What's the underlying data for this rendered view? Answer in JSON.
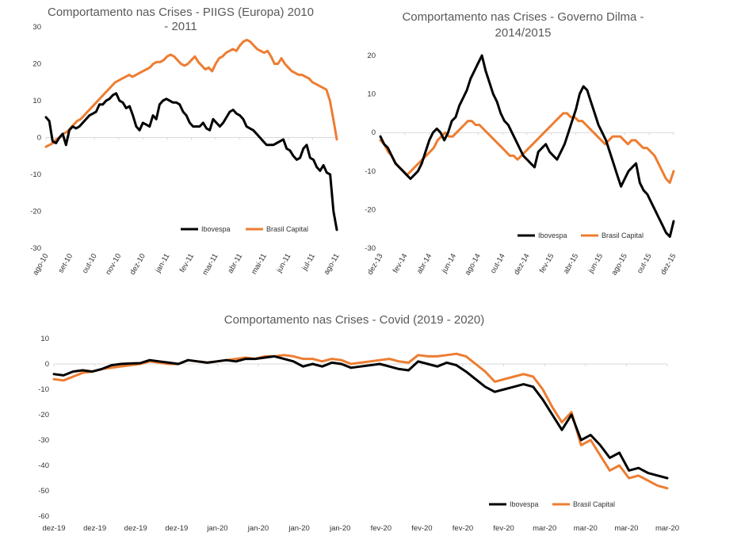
{
  "chart_data": [
    {
      "type": "line",
      "title_lines": [
        "Comportamento nas Crises - PIIGS (Europa) 2010",
        "- 2011"
      ],
      "ylim": [
        -30,
        30
      ],
      "yticks": [
        30,
        20,
        10,
        0,
        -10,
        -20,
        -30
      ],
      "xticks": [
        "ago-10",
        "set-10",
        "out-10",
        "nov-10",
        "dez-10",
        "jan-11",
        "fev-11",
        "mar-11",
        "abr-11",
        "mai-11",
        "jun-11",
        "jul-11",
        "ago-11"
      ],
      "legend_position": "bottom-right",
      "series": [
        {
          "name": "Ibovespa",
          "color": "#000000",
          "values": [
            5.5,
            4.5,
            -1,
            -1.5,
            0,
            1,
            -2,
            2,
            3,
            2.5,
            3,
            4,
            5,
            6,
            6.5,
            7,
            9,
            9,
            10,
            10.5,
            11.5,
            12,
            10,
            9.5,
            8,
            8.5,
            6,
            3,
            2,
            4,
            3.5,
            3,
            6,
            5,
            9,
            10,
            10.5,
            10,
            9.5,
            9.5,
            9,
            7,
            6,
            4,
            3,
            3,
            3,
            4,
            2.5,
            2,
            5,
            4,
            3,
            4,
            5.5,
            7,
            7.5,
            6.5,
            6,
            5,
            3,
            2.5,
            2,
            1,
            0,
            -1,
            -2,
            -2,
            -2,
            -1.5,
            -1,
            -0.5,
            -3,
            -3.5,
            -5,
            -6,
            -5.5,
            -3,
            -2,
            -5.5,
            -6,
            -8,
            -9,
            -7.5,
            -9.5,
            -10,
            -20,
            -25
          ]
        },
        {
          "name": "Brasil Capital",
          "color": "#ed7d31",
          "values": [
            -2.5,
            -2,
            -1.5,
            -0.5,
            0,
            1,
            1.5,
            2.5,
            3.5,
            4.5,
            5,
            6,
            7,
            8,
            9,
            10,
            11,
            12,
            13,
            14,
            15,
            15.5,
            16,
            16.5,
            17,
            16.5,
            17,
            17.5,
            18,
            18.5,
            19,
            20,
            20.5,
            20.5,
            21,
            22,
            22.5,
            22,
            21,
            20,
            19.5,
            20,
            21,
            22,
            20.5,
            19.5,
            18.5,
            19,
            18,
            20,
            21.5,
            22,
            23,
            23.5,
            24,
            23.5,
            25,
            26,
            26.5,
            26,
            25,
            24,
            23.5,
            23,
            23.5,
            22,
            20,
            20,
            21.5,
            20,
            19,
            18,
            17.5,
            17,
            17,
            16.5,
            16,
            15,
            14.5,
            14,
            13.5,
            13,
            10,
            5,
            -0.5
          ]
        }
      ]
    },
    {
      "type": "line",
      "title_lines": [
        "Comportamento nas Crises - Governo Dilma -",
        "2014/2015"
      ],
      "ylim": [
        -30,
        20
      ],
      "yticks": [
        20,
        10,
        0,
        -10,
        -20,
        -30
      ],
      "xticks": [
        "dez-13",
        "fev-14",
        "abr-14",
        "jun-14",
        "ago-14",
        "out-14",
        "dez-14",
        "fev-15",
        "abr-15",
        "jun-15",
        "ago-15",
        "out-15",
        "dez-15"
      ],
      "legend_position": "bottom-right",
      "series": [
        {
          "name": "Ibovespa",
          "color": "#000000",
          "values": [
            -1,
            -3,
            -4,
            -6,
            -8,
            -9,
            -10,
            -11,
            -12,
            -11,
            -10,
            -8,
            -5,
            -2,
            0,
            1,
            0,
            -2,
            0,
            3,
            4,
            7,
            9,
            11,
            14,
            16,
            18,
            20,
            16,
            13,
            10,
            8,
            5,
            3,
            2,
            0,
            -2,
            -4,
            -6,
            -7,
            -8,
            -9,
            -5,
            -4,
            -3,
            -5,
            -6,
            -7,
            -5,
            -3,
            0,
            3,
            6,
            10,
            12,
            11,
            8,
            5,
            2,
            0,
            -2,
            -5,
            -8,
            -11,
            -14,
            -12,
            -10,
            -9,
            -8,
            -13,
            -15,
            -16,
            -18,
            -20,
            -22,
            -24,
            -26,
            -27,
            -23
          ]
        },
        {
          "name": "Brasil Capital",
          "color": "#ed7d31",
          "values": [
            -2,
            -3,
            -5,
            -6,
            -8,
            -9,
            -10,
            -11,
            -10,
            -9,
            -8,
            -7,
            -6,
            -5,
            -4,
            -2,
            -1,
            0,
            -1,
            -1,
            0,
            1,
            2,
            3,
            3,
            2,
            2,
            1,
            0,
            -1,
            -2,
            -3,
            -4,
            -5,
            -6,
            -6,
            -7,
            -6,
            -5,
            -4,
            -3,
            -2,
            -1,
            0,
            1,
            2,
            3,
            4,
            5,
            5,
            4,
            4,
            3,
            3,
            2,
            1,
            0,
            -1,
            -2,
            -3,
            -2,
            -1,
            -1,
            -1,
            -2,
            -3,
            -2,
            -2,
            -3,
            -4,
            -4,
            -5,
            -6,
            -8,
            -10,
            -12,
            -13,
            -10
          ]
        }
      ]
    },
    {
      "type": "line",
      "title_lines": [
        "Comportamento nas Crises -  Covid (2019 - 2020)"
      ],
      "ylim": [
        -60,
        10
      ],
      "yticks": [
        10,
        0,
        -10,
        -20,
        -30,
        -40,
        -50,
        -60
      ],
      "xticks": [
        "dez-19",
        "dez-19",
        "dez-19",
        "dez-19",
        "jan-20",
        "jan-20",
        "jan-20",
        "jan-20",
        "fev-20",
        "fev-20",
        "fev-20",
        "fev-20",
        "mar-20",
        "mar-20",
        "mar-20",
        "mar-20"
      ],
      "legend_position": "bottom-right",
      "series": [
        {
          "name": "Ibovespa",
          "color": "#000000",
          "values": [
            -4,
            -4.5,
            -3,
            -2.5,
            -3,
            -2,
            -0.5,
            0,
            0.2,
            0.3,
            1.5,
            1,
            0.5,
            0,
            1.5,
            1,
            0.5,
            1,
            1.5,
            1,
            2,
            2,
            2.5,
            3,
            2,
            1,
            -1,
            0,
            -1,
            0.5,
            0,
            -1.5,
            -1,
            -0.5,
            0,
            -1,
            -2,
            -2.5,
            1,
            0,
            -1,
            0.5,
            -0.5,
            -3,
            -6,
            -9,
            -11,
            -10,
            -9,
            -8,
            -9,
            -14,
            -20,
            -26,
            -20,
            -30,
            -28,
            -32,
            -37,
            -35,
            -42,
            -41,
            -43,
            -44,
            -45
          ]
        },
        {
          "name": "Brasil Capital",
          "color": "#ed7d31",
          "values": [
            -6,
            -6.5,
            -5,
            -3.5,
            -3,
            -2,
            -1.5,
            -1,
            -0.5,
            0,
            1,
            0.5,
            0,
            0,
            1.5,
            1,
            0.5,
            1,
            1.5,
            2,
            2.5,
            2,
            3,
            3,
            3.5,
            3,
            2,
            2,
            1,
            2,
            1.5,
            0,
            0.5,
            1,
            1.5,
            2,
            1,
            0.5,
            3.5,
            3,
            3,
            3.5,
            4,
            3,
            0,
            -3,
            -7,
            -6,
            -5,
            -4,
            -5,
            -10,
            -17,
            -23,
            -19,
            -32,
            -30,
            -36,
            -42,
            -40,
            -45,
            -44,
            -46,
            -48,
            -49
          ]
        }
      ]
    }
  ]
}
